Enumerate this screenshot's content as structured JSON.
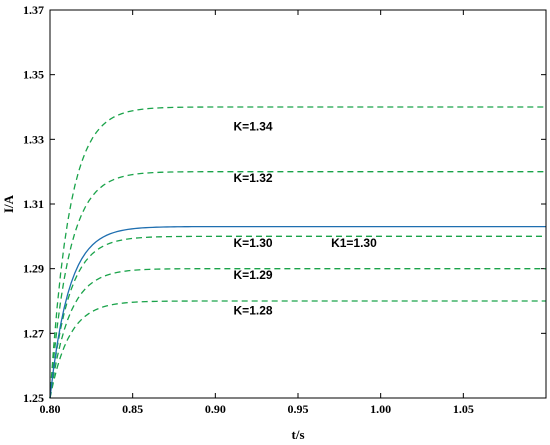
{
  "chart_data": {
    "type": "line",
    "xlabel": "t/s",
    "ylabel": "I/A",
    "xlim": [
      0.8,
      1.1
    ],
    "ylim": [
      1.25,
      1.37
    ],
    "xticks": [
      "0.80",
      "0.85",
      "0.90",
      "0.95",
      "1.00",
      "1.05"
    ],
    "yticks": [
      "1.25",
      "1.27",
      "1.29",
      "1.31",
      "1.33",
      "1.35",
      "1.37"
    ],
    "grid": false,
    "colors": {
      "dashed": "#1aa34a",
      "solid": "#1f6fb0"
    },
    "series": [
      {
        "style": "dashed",
        "label": "K=1.34",
        "start": 1.25,
        "steady": 1.34,
        "settle": 0.9
      },
      {
        "style": "dashed",
        "label": "K=1.32",
        "start": 1.25,
        "steady": 1.32,
        "settle": 0.9
      },
      {
        "style": "dashed",
        "label": "K=1.30",
        "start": 1.25,
        "steady": 1.3,
        "settle": 0.9
      },
      {
        "style": "dashed",
        "label": "K=1.29",
        "start": 1.25,
        "steady": 1.29,
        "settle": 0.9
      },
      {
        "style": "dashed",
        "label": "K=1.28",
        "start": 1.25,
        "steady": 1.28,
        "settle": 0.9
      },
      {
        "style": "solid",
        "label": "K1=1.30",
        "start": 1.25,
        "steady": 1.303,
        "settle": 0.89
      }
    ],
    "annotations": [
      {
        "text": "K=1.34",
        "x": 0.911,
        "y": 1.334
      },
      {
        "text": "K=1.32",
        "x": 0.911,
        "y": 1.318
      },
      {
        "text": "K=1.30",
        "x": 0.911,
        "y": 1.298
      },
      {
        "text": "K1=1.30",
        "x": 0.97,
        "y": 1.298
      },
      {
        "text": "K=1.29",
        "x": 0.911,
        "y": 1.288
      },
      {
        "text": "K=1.28",
        "x": 0.911,
        "y": 1.277
      }
    ]
  }
}
